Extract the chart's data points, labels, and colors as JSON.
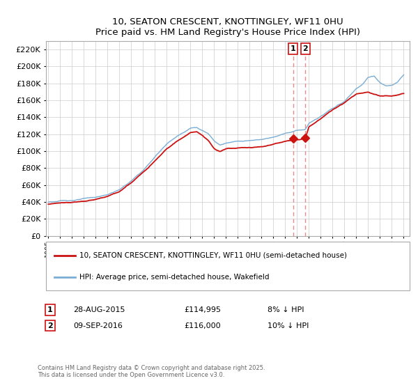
{
  "title": "10, SEATON CRESCENT, KNOTTINGLEY, WF11 0HU",
  "subtitle": "Price paid vs. HM Land Registry's House Price Index (HPI)",
  "legend_line1": "10, SEATON CRESCENT, KNOTTINGLEY, WF11 0HU (semi-detached house)",
  "legend_line2": "HPI: Average price, semi-detached house, Wakefield",
  "annotation1_label": "1",
  "annotation1_date": "28-AUG-2015",
  "annotation1_price": "£114,995",
  "annotation1_note": "8% ↓ HPI",
  "annotation1_year": 2015.65,
  "annotation1_value": 114995,
  "annotation2_label": "2",
  "annotation2_date": "09-SEP-2016",
  "annotation2_price": "£116,000",
  "annotation2_note": "10% ↓ HPI",
  "annotation2_year": 2016.69,
  "annotation2_value": 116000,
  "footer": "Contains HM Land Registry data © Crown copyright and database right 2025.\nThis data is licensed under the Open Government Licence v3.0.",
  "hpi_color": "#7aadd4",
  "price_color": "#cc1111",
  "vline_color": "#e88888",
  "background_color": "#ffffff",
  "grid_color": "#cccccc",
  "ylim_min": 0,
  "ylim_max": 230000,
  "hpi_anchors_x": [
    1995,
    1995.5,
    1996,
    1997,
    1998,
    1999,
    2000,
    2001,
    2002,
    2003,
    2004,
    2005,
    2006,
    2007,
    2007.5,
    2008,
    2008.5,
    2009,
    2009.5,
    2010,
    2011,
    2012,
    2013,
    2014,
    2015,
    2015.65,
    2016,
    2016.69,
    2017,
    2018,
    2019,
    2020,
    2021,
    2021.5,
    2022,
    2022.5,
    2023,
    2023.5,
    2024,
    2024.5,
    2025
  ],
  "hpi_anchors_y": [
    40000,
    40500,
    41000,
    42000,
    43500,
    45000,
    48000,
    54000,
    64000,
    76000,
    92000,
    108000,
    118000,
    127000,
    128000,
    124000,
    120000,
    112000,
    108000,
    110000,
    112000,
    113000,
    115000,
    118000,
    123000,
    124900,
    127000,
    128000,
    135000,
    143000,
    152000,
    160000,
    175000,
    180000,
    188000,
    190000,
    182000,
    178000,
    178000,
    182000,
    190000
  ],
  "price_anchors_x": [
    1995,
    1995.5,
    1996,
    1997,
    1998,
    1999,
    2000,
    2001,
    2002,
    2003,
    2004,
    2005,
    2006,
    2007,
    2007.5,
    2008,
    2008.5,
    2009,
    2009.5,
    2010,
    2011,
    2012,
    2013,
    2014,
    2015,
    2015.65,
    2016,
    2016.69,
    2017,
    2018,
    2019,
    2020,
    2021,
    2022,
    2023,
    2024,
    2025
  ],
  "price_anchors_y": [
    37500,
    38000,
    38500,
    39500,
    41000,
    42500,
    46000,
    51000,
    61000,
    73000,
    88000,
    103000,
    113000,
    122000,
    123000,
    119000,
    113000,
    103000,
    100000,
    103000,
    104000,
    104500,
    106000,
    109000,
    113000,
    114995,
    115000,
    116000,
    130000,
    140000,
    150000,
    158000,
    168000,
    170000,
    165000,
    165000,
    168000
  ]
}
